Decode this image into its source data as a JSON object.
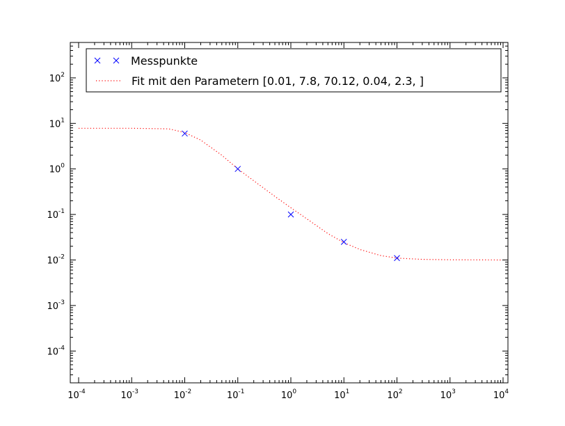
{
  "chart_data": {
    "type": "scatter",
    "x_scale": "log",
    "y_scale": "log",
    "xlim": [
      0.0001,
      10000
    ],
    "ylim": [
      2e-05,
      600
    ],
    "x_ticks": [
      {
        "base": "10",
        "exp": "-4",
        "value": 0.0001
      },
      {
        "base": "10",
        "exp": "-3",
        "value": 0.001
      },
      {
        "base": "10",
        "exp": "-2",
        "value": 0.01
      },
      {
        "base": "10",
        "exp": "-1",
        "value": 0.1
      },
      {
        "base": "10",
        "exp": "0",
        "value": 1
      },
      {
        "base": "10",
        "exp": "1",
        "value": 10
      },
      {
        "base": "10",
        "exp": "2",
        "value": 100
      },
      {
        "base": "10",
        "exp": "3",
        "value": 1000
      },
      {
        "base": "10",
        "exp": "4",
        "value": 10000
      }
    ],
    "y_ticks": [
      {
        "base": "10",
        "exp": "-4",
        "value": 0.0001
      },
      {
        "base": "10",
        "exp": "-3",
        "value": 0.001
      },
      {
        "base": "10",
        "exp": "-2",
        "value": 0.01
      },
      {
        "base": "10",
        "exp": "-1",
        "value": 0.1
      },
      {
        "base": "10",
        "exp": "0",
        "value": 1
      },
      {
        "base": "10",
        "exp": "1",
        "value": 10
      },
      {
        "base": "10",
        "exp": "2",
        "value": 100
      }
    ],
    "legend_position": "top",
    "series": [
      {
        "name": "Messpunkte",
        "style": "markers-x",
        "color": "#0000ff",
        "points": [
          {
            "x": 0.01,
            "y": 6.0
          },
          {
            "x": 0.1,
            "y": 1.0
          },
          {
            "x": 1,
            "y": 0.1
          },
          {
            "x": 10,
            "y": 0.025
          },
          {
            "x": 100,
            "y": 0.011
          }
        ]
      },
      {
        "name": "Fit mit den Parametern [0.01, 7.8, 70.12, 0.04, 2.3, ]",
        "style": "dotted-line",
        "color": "#ff0000",
        "points": [
          {
            "x": 0.0001,
            "y": 7.8
          },
          {
            "x": 0.001,
            "y": 7.8
          },
          {
            "x": 0.005,
            "y": 7.6
          },
          {
            "x": 0.01,
            "y": 6.3
          },
          {
            "x": 0.02,
            "y": 4.3
          },
          {
            "x": 0.05,
            "y": 2.0
          },
          {
            "x": 0.1,
            "y": 1.0
          },
          {
            "x": 0.2,
            "y": 0.55
          },
          {
            "x": 0.5,
            "y": 0.25
          },
          {
            "x": 1,
            "y": 0.14
          },
          {
            "x": 2,
            "y": 0.08
          },
          {
            "x": 5,
            "y": 0.038
          },
          {
            "x": 10,
            "y": 0.024
          },
          {
            "x": 20,
            "y": 0.017
          },
          {
            "x": 50,
            "y": 0.0125
          },
          {
            "x": 100,
            "y": 0.011
          },
          {
            "x": 300,
            "y": 0.0103
          },
          {
            "x": 1000,
            "y": 0.0101
          },
          {
            "x": 10000,
            "y": 0.01
          }
        ]
      }
    ]
  }
}
